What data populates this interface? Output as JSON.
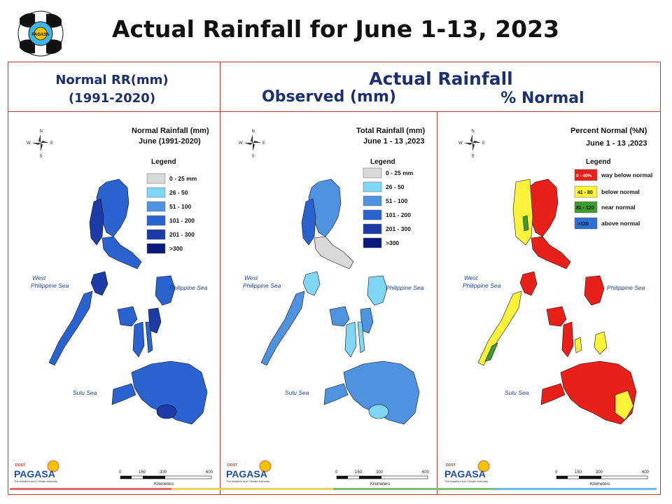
{
  "title": "Actual Rainfall for June 1-13, 2023",
  "header": {
    "normal_line1": "Normal RR(mm)",
    "normal_line2": "(1991-2020)",
    "actual": "Actual Rainfall",
    "observed": "Observed (mm)",
    "percent": "% Normal"
  },
  "panels": [
    {
      "title1": "Normal Rainfall (mm)",
      "title2": "June (1991-2020)",
      "legend_title": "Legend",
      "legend": [
        {
          "label": "0 - 25 mm",
          "color": "#d9d9d9"
        },
        {
          "label": "26 - 50",
          "color": "#7fd6f5"
        },
        {
          "label": "51 - 100",
          "color": "#4f93e0"
        },
        {
          "label": "101 - 200",
          "color": "#2a63cf"
        },
        {
          "label": "201 - 300",
          "color": "#1c3ba6"
        },
        {
          "label": ">300",
          "color": "#0a1a7a"
        }
      ]
    },
    {
      "title1": "Total Rainfall (mm)",
      "title2": "June 1 - 13 ,2023",
      "legend_title": "Legend",
      "legend": [
        {
          "label": "0 - 25 mm",
          "color": "#d9d9d9"
        },
        {
          "label": "26 - 50",
          "color": "#7fd6f5"
        },
        {
          "label": "51 - 100",
          "color": "#4f93e0"
        },
        {
          "label": "101 - 200",
          "color": "#2a63cf"
        },
        {
          "label": "201 - 300",
          "color": "#1c3ba6"
        },
        {
          "label": ">300",
          "color": "#0a1a7a"
        }
      ]
    },
    {
      "title1": "Percent Normal (%N)",
      "title2": "June 1 - 13 ,2023",
      "legend_title": "Legend",
      "legend": [
        {
          "swatch": "0 - 40%",
          "label": "way below normal",
          "color": "#e8201a"
        },
        {
          "swatch": "41 - 80",
          "label": "below normal",
          "color": "#fbf23a"
        },
        {
          "swatch": "81 - 120",
          "label": "near normal",
          "color": "#3f9a2f"
        },
        {
          "swatch": ">120",
          "label": "above normal",
          "color": "#2f6fd6"
        }
      ]
    }
  ],
  "seas": {
    "west_1": "West",
    "west_2": "Philippine Sea",
    "philippine": "Philippine Sea",
    "sulu": "Sulu Sea"
  },
  "compass": {
    "n": "N",
    "s": "S",
    "e": "E",
    "w": "W"
  },
  "scale": {
    "ticks": [
      "0",
      "150",
      "300",
      "600"
    ],
    "unit": "Kilometers"
  },
  "logo": {
    "dost": "DOST",
    "pagasa": "PAGASA",
    "tagline": "The Weather and Climate Authority",
    "mark": "PAGASA"
  },
  "colors": {
    "frame": "#c0392b",
    "header_text": "#1c2f6e",
    "bands": [
      "#e06a6a",
      "#f2cf63",
      "#78c07a",
      "#6fb9e6"
    ]
  }
}
